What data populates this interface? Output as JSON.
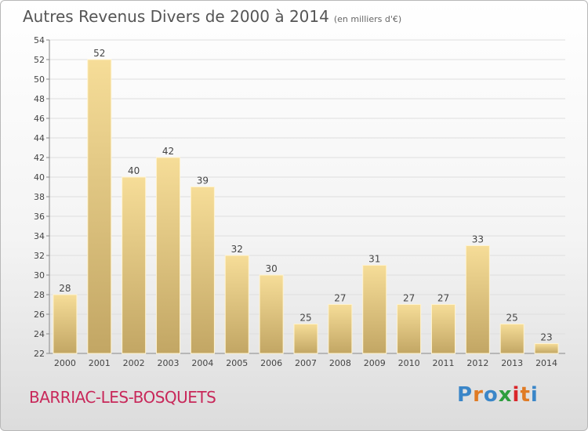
{
  "chart_data": {
    "type": "bar",
    "title": "Autres Revenus Divers de 2000 à 2014",
    "subtitle": "(en milliers d'€)",
    "categories": [
      "2000",
      "2001",
      "2002",
      "2003",
      "2004",
      "2005",
      "2006",
      "2007",
      "2008",
      "2009",
      "2010",
      "2011",
      "2012",
      "2013",
      "2014"
    ],
    "values": [
      28,
      52,
      40,
      42,
      39,
      32,
      30,
      25,
      27,
      31,
      27,
      27,
      33,
      25,
      23
    ],
    "ylim": [
      22,
      54
    ],
    "yticks": [
      22,
      24,
      26,
      28,
      30,
      32,
      34,
      36,
      38,
      40,
      42,
      44,
      46,
      48,
      50,
      52,
      54
    ],
    "grid": true,
    "bar_color": "#e8cd85"
  },
  "footer": {
    "town": "BARRIAC-LES-BOSQUETS",
    "town_color": "#c8285a",
    "brand_letters": [
      {
        "char": "P",
        "color": "#3a86c8"
      },
      {
        "char": "r",
        "color": "#e07b24"
      },
      {
        "char": "o",
        "color": "#3a86c8"
      },
      {
        "char": "x",
        "color": "#2e9e3e"
      },
      {
        "char": "i",
        "color": "#d9262a"
      },
      {
        "char": "t",
        "color": "#e07b24"
      },
      {
        "char": "i",
        "color": "#3a86c8"
      }
    ]
  }
}
